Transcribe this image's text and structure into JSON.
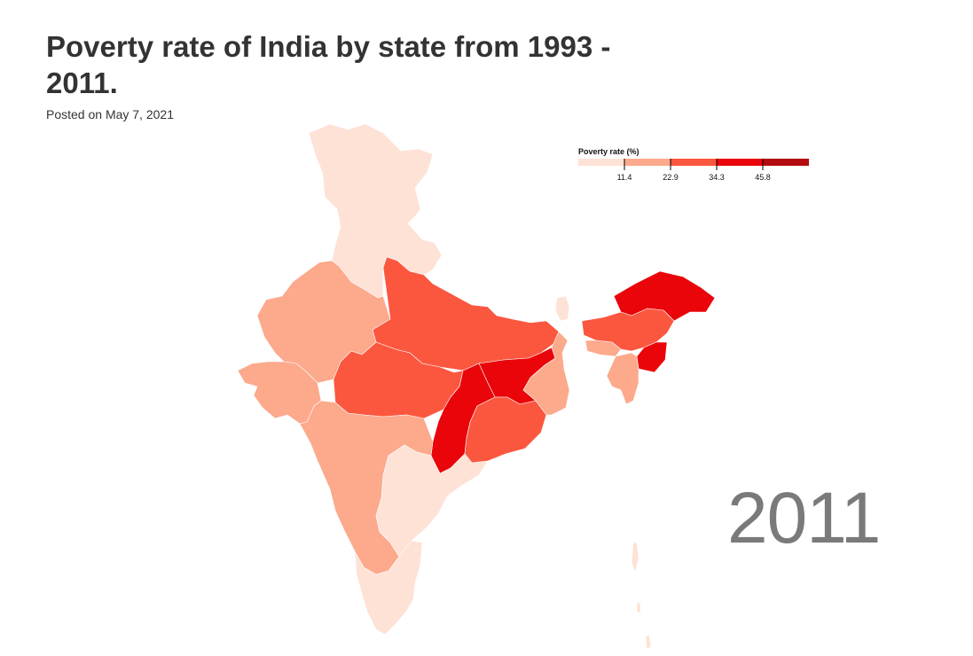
{
  "header": {
    "title": "Poverty rate of India by state from 1993 - 2011.",
    "posted": "Posted on May 7, 2021"
  },
  "legend": {
    "title": "Poverty rate (%)",
    "thresholds": [
      "11.4",
      "22.9",
      "34.3",
      "45.8"
    ],
    "colors": [
      "#fee2d6",
      "#fca98c",
      "#fb573f",
      "#e9050a",
      "#b30c10"
    ]
  },
  "year": "2011",
  "map": {
    "regions": [
      {
        "name": "north-region",
        "color_class": 0
      },
      {
        "name": "rajasthan-west-region",
        "color_class": 1
      },
      {
        "name": "gujarat-region",
        "color_class": 1
      },
      {
        "name": "uttar-pradesh-bihar-region",
        "color_class": 2
      },
      {
        "name": "madhya-pradesh-region",
        "color_class": 2
      },
      {
        "name": "jharkhand-region",
        "color_class": 3
      },
      {
        "name": "chhattisgarh-region",
        "color_class": 3
      },
      {
        "name": "odisha-region",
        "color_class": 2
      },
      {
        "name": "west-bengal-region",
        "color_class": 1
      },
      {
        "name": "maharashtra-karnataka-region",
        "color_class": 1
      },
      {
        "name": "andhra-region",
        "color_class": 0
      },
      {
        "name": "south-tip-region",
        "color_class": 0
      },
      {
        "name": "sikkim-region",
        "color_class": 0
      },
      {
        "name": "arunachal-region",
        "color_class": 3
      },
      {
        "name": "assam-region",
        "color_class": 2
      },
      {
        "name": "meghalaya-region",
        "color_class": 1
      },
      {
        "name": "manipur-region",
        "color_class": 3
      },
      {
        "name": "mizoram-tripura-region",
        "color_class": 1
      },
      {
        "name": "andaman-region",
        "color_class": 0
      }
    ]
  }
}
